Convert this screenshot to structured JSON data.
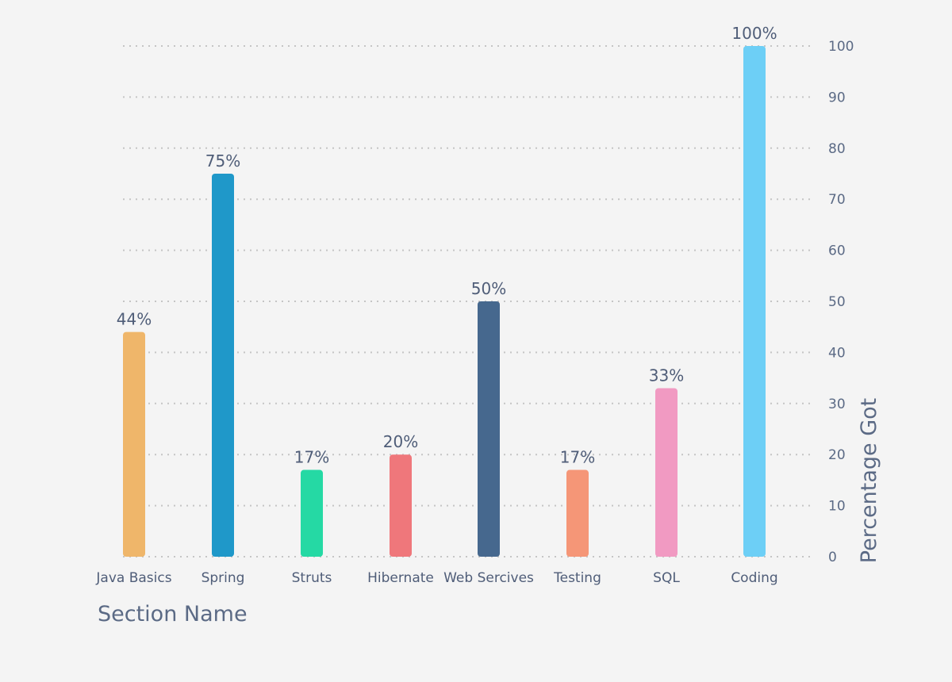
{
  "chart_data": {
    "type": "bar",
    "categories": [
      "Java Basics",
      "Spring",
      "Struts",
      "Hibernate",
      "Web Sercives",
      "Testing",
      "SQL",
      "Coding"
    ],
    "values": [
      44,
      75,
      17,
      20,
      50,
      17,
      33,
      100
    ],
    "value_labels": [
      "44%",
      "75%",
      "17%",
      "20%",
      "50%",
      "17%",
      "33%",
      "100%"
    ],
    "colors": [
      "#efb66a",
      "#1f98c9",
      "#25d9a4",
      "#ef777b",
      "#46688e",
      "#f59677",
      "#f19ac2",
      "#6dcff6"
    ],
    "xlabel": "Section Name",
    "ylabel": "Percentage Got",
    "ylim": [
      0,
      100
    ],
    "yticks": [
      0,
      10,
      20,
      30,
      40,
      50,
      60,
      70,
      80,
      90,
      100
    ],
    "y_axis_side": "right",
    "grid": true,
    "grid_style": "dotted"
  }
}
